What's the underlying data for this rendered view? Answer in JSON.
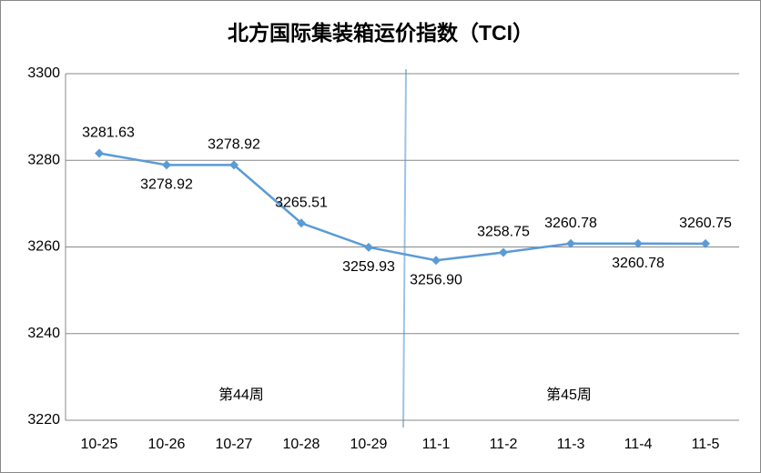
{
  "chart_data": {
    "type": "line",
    "title": "北方国际集装箱运价指数（TCI）",
    "categories": [
      "10-25",
      "10-26",
      "10-27",
      "10-28",
      "10-29",
      "11-1",
      "11-2",
      "11-3",
      "11-4",
      "11-5"
    ],
    "values": [
      3281.63,
      3278.92,
      3278.92,
      3265.51,
      3259.93,
      3256.9,
      3258.75,
      3260.78,
      3260.78,
      3260.75
    ],
    "value_labels": [
      "3281.63",
      "3278.92",
      "3278.92",
      "3265.51",
      "3259.93",
      "3256.90",
      "3258.75",
      "3260.78",
      "3260.78",
      "3260.75"
    ],
    "color": "#5b9bd5",
    "ylim": [
      3220,
      3300
    ],
    "yticks": [
      3220,
      3240,
      3260,
      3280,
      3300
    ],
    "grid": true,
    "annotations": [
      "第44周",
      "第45周"
    ]
  }
}
